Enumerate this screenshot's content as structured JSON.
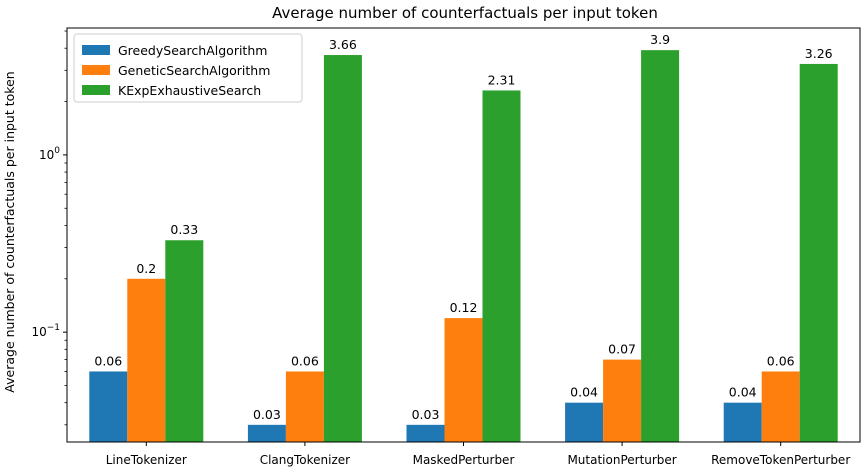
{
  "chart_data": {
    "type": "bar",
    "title": "Average number of counterfactuals per input token",
    "xlabel": "",
    "ylabel": "Average number of counterfactuals per input token",
    "yscale": "log",
    "ylim": [
      0.024,
      5.2
    ],
    "y_ticks": [
      {
        "value": 0.1,
        "base": "10",
        "exp": "−1"
      },
      {
        "value": 1,
        "base": "10",
        "exp": "0"
      }
    ],
    "categories": [
      "LineTokenizer",
      "ClangTokenizer",
      "MaskedPerturber",
      "MutationPerturber",
      "RemoveTokenPerturber"
    ],
    "series": [
      {
        "name": "GreedySearchAlgorithm",
        "color": "#1f77b4",
        "values": [
          0.06,
          0.03,
          0.03,
          0.04,
          0.04
        ],
        "labels": [
          "0.06",
          "0.03",
          "0.03",
          "0.04",
          "0.04"
        ]
      },
      {
        "name": "GeneticSearchAlgorithm",
        "color": "#ff7f0e",
        "values": [
          0.2,
          0.06,
          0.12,
          0.07,
          0.06
        ],
        "labels": [
          "0.2",
          "0.06",
          "0.12",
          "0.07",
          "0.06"
        ]
      },
      {
        "name": "KExpExhaustiveSearch",
        "color": "#2ca02c",
        "values": [
          0.33,
          3.66,
          2.31,
          3.9,
          3.26
        ],
        "labels": [
          "0.33",
          "3.66",
          "2.31",
          "3.9",
          "3.26"
        ]
      }
    ],
    "legend": {
      "placement": "top-left"
    },
    "grid": false
  }
}
